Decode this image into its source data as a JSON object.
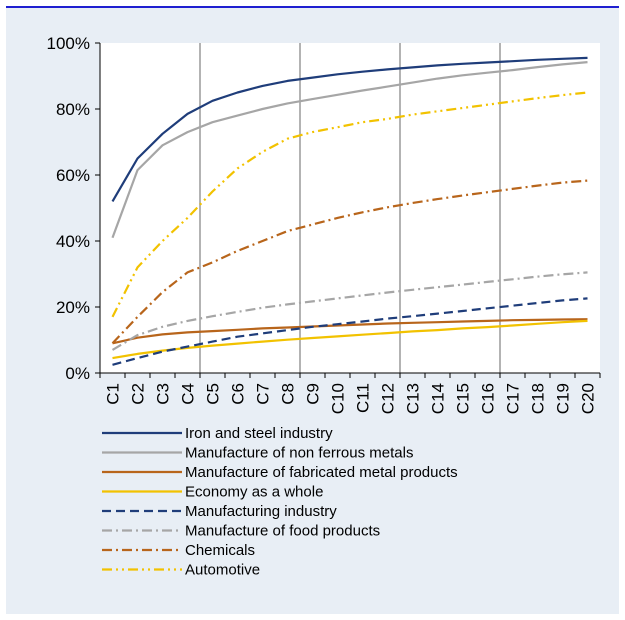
{
  "chart_data": {
    "type": "line",
    "title": "",
    "xlabel": "",
    "ylabel": "",
    "x": [
      "C1",
      "C2",
      "C3",
      "C4",
      "C5",
      "C6",
      "C7",
      "C8",
      "C9",
      "C10",
      "C11",
      "C12",
      "C13",
      "C14",
      "C15",
      "C16",
      "C17",
      "C18",
      "C19",
      "C20"
    ],
    "ylim": [
      0,
      100
    ],
    "yticks": [
      "0%",
      "20%",
      "40%",
      "60%",
      "80%",
      "100%"
    ],
    "grid": "vertical gridlines at C4.5, C8.5, C12.5, C16.5",
    "legend_position": "bottom",
    "series": [
      {
        "name": "Iron and steel industry",
        "color": "#1f3d7a",
        "dash": "solid",
        "values": [
          52,
          65,
          72.5,
          78.5,
          82.5,
          85,
          87,
          88.5,
          89.5,
          90.5,
          91.3,
          92,
          92.6,
          93.2,
          93.7,
          94.1,
          94.5,
          94.9,
          95.2,
          95.5
        ]
      },
      {
        "name": "Manufacture of non ferrous metals",
        "color": "#a6a6a6",
        "dash": "solid",
        "values": [
          41,
          61.5,
          69,
          73,
          76,
          78,
          80,
          81.7,
          83,
          84.3,
          85.6,
          86.8,
          88,
          89.2,
          90.2,
          91,
          91.8,
          92.7,
          93.5,
          94.2
        ]
      },
      {
        "name": "Manufacture of fabricated metal products",
        "color": "#b8651b",
        "dash": "solid",
        "values": [
          9,
          10.7,
          11.7,
          12.3,
          12.7,
          13.1,
          13.5,
          13.8,
          14.1,
          14.4,
          14.7,
          15,
          15.2,
          15.4,
          15.6,
          15.8,
          16,
          16.1,
          16.2,
          16.3
        ]
      },
      {
        "name": "Economy as a whole",
        "color": "#f2c200",
        "dash": "solid",
        "values": [
          4.5,
          5.8,
          6.8,
          7.6,
          8.3,
          8.9,
          9.5,
          10.1,
          10.6,
          11.1,
          11.6,
          12.1,
          12.6,
          13,
          13.5,
          13.9,
          14.4,
          14.9,
          15.4,
          15.8
        ]
      },
      {
        "name": "Manufacturing industry",
        "color": "#1f3d7a",
        "dash": "dash",
        "values": [
          2.5,
          4.5,
          6.5,
          8,
          9.5,
          11,
          12,
          13,
          14,
          14.8,
          15.6,
          16.5,
          17.2,
          18,
          18.8,
          19.6,
          20.4,
          21.2,
          22,
          22.6
        ]
      },
      {
        "name": "Manufacture of food products",
        "color": "#a6a6a6",
        "dash": "dashdot",
        "values": [
          7,
          11.5,
          14,
          15.8,
          17.2,
          18.5,
          19.8,
          20.8,
          21.7,
          22.6,
          23.5,
          24.4,
          25.2,
          26,
          26.8,
          27.6,
          28.4,
          29.2,
          29.9,
          30.5
        ]
      },
      {
        "name": "Chemicals",
        "color": "#b8651b",
        "dash": "dashdot",
        "values": [
          9,
          17,
          24.5,
          30.5,
          33.5,
          37,
          40,
          43,
          45,
          47,
          48.7,
          50.2,
          51.5,
          52.7,
          53.8,
          54.8,
          55.8,
          56.8,
          57.7,
          58.3
        ]
      },
      {
        "name": "Automotive",
        "color": "#f2c200",
        "dash": "dashdotdot",
        "values": [
          17,
          32,
          40,
          47,
          55,
          62,
          67,
          71,
          73,
          74.5,
          76,
          77,
          78.3,
          79.3,
          80.3,
          81.3,
          82.3,
          83.3,
          84.2,
          85
        ]
      }
    ]
  }
}
